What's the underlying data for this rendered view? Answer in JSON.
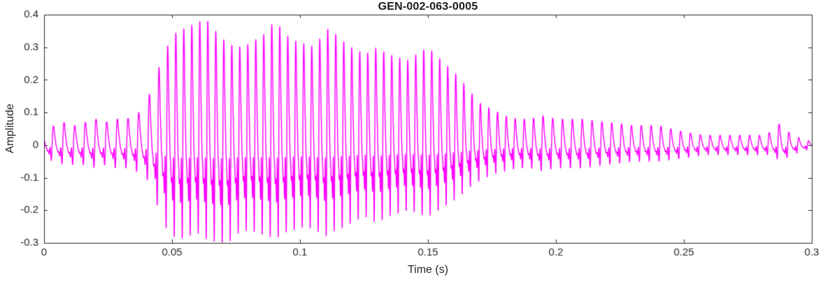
{
  "figure": {
    "title": "GEN-002-063-0005",
    "xlabel": "Time (s)",
    "ylabel": "Amplitude"
  },
  "chart_data": {
    "type": "line",
    "title": "GEN-002-063-0005",
    "xlabel": "Time (s)",
    "ylabel": "Amplitude",
    "xlim": [
      0,
      0.3
    ],
    "ylim": [
      -0.3,
      0.4
    ],
    "xticks": [
      0,
      0.05,
      0.1,
      0.15,
      0.2,
      0.25,
      0.3
    ],
    "xtick_labels": [
      "0",
      "0.05",
      "0.1",
      "0.15",
      "0.2",
      "0.25",
      "0.3"
    ],
    "yticks": [
      -0.3,
      -0.2,
      -0.1,
      0,
      0.1,
      0.2,
      0.3,
      0.4
    ],
    "ytick_labels": [
      "-0.3",
      "-0.2",
      "-0.1",
      "0",
      "0.1",
      "0.2",
      "0.3",
      "0.4"
    ],
    "grid": false,
    "legend_position": "none",
    "line_color": "#FF00FF",
    "axis_color": "#262626",
    "background_color": "#ffffff",
    "signal": {
      "description": "speech-like waveform; peak envelopes (positive/negative magnitude) vs time, with pitch contour used to synthesize the oscillation",
      "envelope_t": [
        0.0,
        0.004,
        0.008,
        0.012,
        0.016,
        0.02,
        0.024,
        0.028,
        0.032,
        0.036,
        0.04,
        0.044,
        0.048,
        0.052,
        0.056,
        0.06,
        0.064,
        0.068,
        0.072,
        0.076,
        0.08,
        0.084,
        0.088,
        0.09,
        0.094,
        0.098,
        0.102,
        0.106,
        0.11,
        0.114,
        0.118,
        0.122,
        0.126,
        0.13,
        0.134,
        0.138,
        0.142,
        0.146,
        0.15,
        0.154,
        0.158,
        0.162,
        0.166,
        0.17,
        0.175,
        0.18,
        0.185,
        0.19,
        0.195,
        0.2,
        0.21,
        0.22,
        0.23,
        0.24,
        0.25,
        0.258,
        0.266,
        0.274,
        0.28,
        0.284,
        0.288,
        0.292,
        0.296,
        0.3
      ],
      "envelope_pos": [
        0.04,
        0.06,
        0.07,
        0.06,
        0.07,
        0.08,
        0.07,
        0.08,
        0.08,
        0.09,
        0.13,
        0.22,
        0.3,
        0.35,
        0.36,
        0.38,
        0.38,
        0.34,
        0.31,
        0.3,
        0.31,
        0.33,
        0.35,
        0.39,
        0.34,
        0.32,
        0.31,
        0.3,
        0.36,
        0.34,
        0.31,
        0.29,
        0.28,
        0.3,
        0.28,
        0.27,
        0.26,
        0.28,
        0.3,
        0.27,
        0.24,
        0.21,
        0.17,
        0.13,
        0.11,
        0.09,
        0.08,
        0.08,
        0.09,
        0.08,
        0.08,
        0.07,
        0.06,
        0.06,
        0.04,
        0.03,
        0.03,
        0.03,
        0.03,
        0.04,
        0.07,
        0.03,
        0.02,
        0.01
      ],
      "envelope_neg": [
        0.04,
        0.05,
        0.06,
        0.06,
        0.06,
        0.07,
        0.06,
        0.07,
        0.07,
        0.08,
        0.1,
        0.18,
        0.26,
        0.29,
        0.28,
        0.27,
        0.29,
        0.3,
        0.3,
        0.27,
        0.26,
        0.27,
        0.28,
        0.29,
        0.27,
        0.26,
        0.25,
        0.26,
        0.28,
        0.26,
        0.25,
        0.23,
        0.22,
        0.24,
        0.22,
        0.21,
        0.2,
        0.21,
        0.22,
        0.2,
        0.18,
        0.16,
        0.13,
        0.11,
        0.09,
        0.08,
        0.07,
        0.07,
        0.08,
        0.07,
        0.07,
        0.06,
        0.05,
        0.05,
        0.04,
        0.03,
        0.03,
        0.03,
        0.03,
        0.03,
        0.05,
        0.03,
        0.02,
        0.01
      ],
      "pitch_t": [
        0.0,
        0.04,
        0.05,
        0.16,
        0.2,
        0.3
      ],
      "pitch_hz": [
        240,
        240,
        320,
        320,
        260,
        260
      ],
      "harmonic_amps": [
        1.0,
        0.55,
        0.38,
        0.26,
        0.16,
        0.09
      ],
      "harmonic_phases": [
        0.25,
        1.0,
        2.25,
        4.0,
        6.25,
        9.0
      ]
    }
  }
}
